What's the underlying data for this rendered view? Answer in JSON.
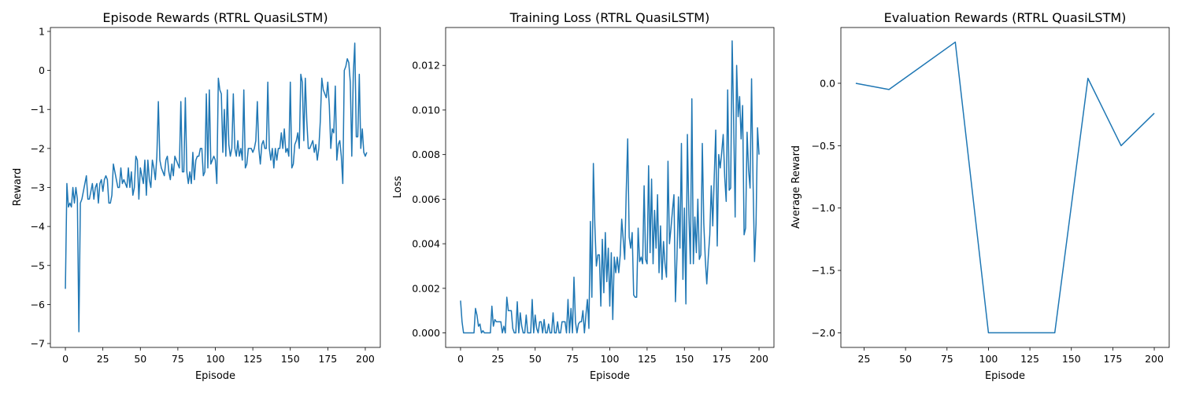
{
  "colors": {
    "line": "#1f77b4",
    "axis": "#000000",
    "background": "#ffffff"
  },
  "chart_data": [
    {
      "type": "line",
      "title": "Episode Rewards (RTRL QuasiLSTM)",
      "xlabel": "Episode",
      "ylabel": "Reward",
      "xlim": [
        -10,
        210
      ],
      "ylim": [
        -7.1,
        1.1
      ],
      "xticks": [
        0,
        25,
        50,
        75,
        100,
        125,
        150,
        175,
        200
      ],
      "yticks": [
        -7,
        -6,
        -5,
        -4,
        -3,
        -2,
        -1,
        0,
        1
      ],
      "ytick_labels": [
        "−7",
        "−6",
        "−5",
        "−4",
        "−3",
        "−2",
        "−1",
        "0",
        "1"
      ],
      "grid": false,
      "series": [
        {
          "x_start": 0,
          "x_step": 1,
          "values": [
            -5.6,
            -2.9,
            -3.5,
            -3.4,
            -3.5,
            -3.0,
            -3.4,
            -3.0,
            -3.3,
            -6.7,
            -3.4,
            -3.3,
            -3.1,
            -2.9,
            -2.7,
            -3.3,
            -3.3,
            -3.1,
            -2.9,
            -3.3,
            -3.0,
            -2.9,
            -3.4,
            -2.9,
            -2.8,
            -3.1,
            -2.8,
            -2.7,
            -2.8,
            -3.4,
            -3.4,
            -3.2,
            -2.4,
            -2.6,
            -2.8,
            -3.0,
            -3.0,
            -2.5,
            -2.9,
            -2.8,
            -2.9,
            -3.0,
            -2.5,
            -3.0,
            -2.6,
            -3.2,
            -3.0,
            -2.2,
            -2.3,
            -3.3,
            -2.5,
            -2.7,
            -2.9,
            -2.3,
            -3.2,
            -2.3,
            -2.8,
            -3.0,
            -2.3,
            -2.5,
            -2.8,
            -2.2,
            -0.8,
            -2.3,
            -2.5,
            -2.6,
            -2.7,
            -2.3,
            -2.2,
            -2.6,
            -2.8,
            -2.4,
            -2.7,
            -2.2,
            -2.3,
            -2.4,
            -2.5,
            -0.8,
            -2.6,
            -2.6,
            -0.7,
            -2.6,
            -2.9,
            -2.6,
            -2.9,
            -2.1,
            -2.8,
            -2.3,
            -2.2,
            -2.2,
            -2.0,
            -2.0,
            -2.7,
            -2.6,
            -0.6,
            -2.5,
            -0.5,
            -2.4,
            -2.3,
            -2.2,
            -2.3,
            -2.9,
            -0.2,
            -0.5,
            -0.6,
            -2.1,
            -1.0,
            -2.2,
            -0.5,
            -1.9,
            -2.2,
            -2.0,
            -0.6,
            -2.0,
            -2.2,
            -1.8,
            -2.2,
            -2.0,
            -2.3,
            -0.5,
            -2.5,
            -2.4,
            -2.0,
            -2.0,
            -2.0,
            -2.1,
            -2.0,
            -1.8,
            -0.8,
            -2.0,
            -2.4,
            -1.9,
            -1.8,
            -2.0,
            -2.0,
            -0.3,
            -2.0,
            -2.3,
            -2.0,
            -2.5,
            -2.0,
            -2.3,
            -2.0,
            -2.0,
            -1.6,
            -2.0,
            -1.5,
            -2.1,
            -2.0,
            -2.2,
            -0.3,
            -2.5,
            -2.4,
            -1.9,
            -1.8,
            -1.6,
            -2.0,
            -0.1,
            -0.3,
            -1.8,
            -0.2,
            -1.3,
            -2.0,
            -2.0,
            -1.9,
            -1.8,
            -2.1,
            -1.9,
            -2.3,
            -2.0,
            -1.3,
            -0.2,
            -0.5,
            -0.6,
            -0.7,
            -0.3,
            -0.9,
            -2.0,
            -1.5,
            -1.6,
            -0.4,
            -2.3,
            -1.9,
            -1.8,
            -2.2,
            -2.9,
            0.0,
            0.1,
            0.3,
            0.2,
            -0.3,
            -2.2,
            -0.1,
            0.7,
            -1.7,
            -1.7,
            -0.1,
            -2.0,
            -1.5,
            -2.1,
            -2.2,
            -2.1
          ]
        }
      ]
    },
    {
      "type": "line",
      "title": "Training Loss (RTRL QuasiLSTM)",
      "xlabel": "Episode",
      "ylabel": "Loss",
      "xlim": [
        -10,
        210
      ],
      "ylim": [
        -0.00065,
        0.0137
      ],
      "xticks": [
        0,
        25,
        50,
        75,
        100,
        125,
        150,
        175,
        200
      ],
      "yticks": [
        0.0,
        0.002,
        0.004,
        0.006,
        0.008,
        0.01,
        0.012
      ],
      "ytick_labels": [
        "0.000",
        "0.002",
        "0.004",
        "0.006",
        "0.008",
        "0.010",
        "0.012"
      ],
      "grid": false,
      "series": [
        {
          "x_start": 0,
          "x_step": 1,
          "values": [
            0.00145,
            0.0005,
            0.0,
            0.0,
            0.0,
            0.0,
            0.0,
            0.0,
            0.0,
            0.0,
            0.0011,
            0.0008,
            0.0003,
            0.0004,
            0.0,
            0.0001,
            0.0,
            0.0,
            0.0,
            0.0,
            0.0,
            0.0012,
            0.0003,
            0.0006,
            0.0005,
            0.0005,
            0.0005,
            0.0005,
            0.0,
            0.0003,
            0.0,
            0.0016,
            0.001,
            0.001,
            0.001,
            0.0002,
            0.0,
            0.0,
            0.0014,
            0.0,
            0.0009,
            0.0003,
            0.0,
            0.0,
            0.0008,
            0.0,
            0.0,
            0.0,
            0.0015,
            0.0,
            0.0008,
            0.0002,
            0.0,
            0.0005,
            0.0005,
            0.0,
            0.0006,
            0.0,
            0.0,
            0.0004,
            0.0,
            0.0,
            0.0009,
            0.0,
            0.0,
            0.0005,
            0.0,
            0.0,
            0.0005,
            0.0005,
            0.0005,
            0.0,
            0.0015,
            0.0,
            0.0011,
            0.0,
            0.0025,
            0.0005,
            0.0,
            0.0004,
            0.0005,
            0.0005,
            0.001,
            0.0,
            0.0008,
            0.0015,
            0.0002,
            0.005,
            0.0016,
            0.0076,
            0.0048,
            0.003,
            0.0035,
            0.0035,
            0.0012,
            0.0042,
            0.0018,
            0.0045,
            0.0023,
            0.0038,
            0.0012,
            0.0036,
            0.0006,
            0.0034,
            0.0027,
            0.0034,
            0.0027,
            0.0035,
            0.0051,
            0.0042,
            0.0033,
            0.0063,
            0.0087,
            0.0043,
            0.0038,
            0.0045,
            0.0017,
            0.0016,
            0.0016,
            0.0047,
            0.0032,
            0.0034,
            0.0031,
            0.0066,
            0.0033,
            0.0031,
            0.0075,
            0.0036,
            0.0069,
            0.0031,
            0.0055,
            0.0038,
            0.0062,
            0.0027,
            0.0048,
            0.0024,
            0.0041,
            0.0031,
            0.0025,
            0.0077,
            0.004,
            0.0047,
            0.0055,
            0.0062,
            0.0014,
            0.0034,
            0.0061,
            0.0038,
            0.0085,
            0.0024,
            0.0056,
            0.0013,
            0.0089,
            0.0053,
            0.0031,
            0.0105,
            0.0031,
            0.0052,
            0.0036,
            0.006,
            0.0033,
            0.0035,
            0.0085,
            0.0049,
            0.0033,
            0.0022,
            0.0034,
            0.0044,
            0.0066,
            0.0048,
            0.007,
            0.0091,
            0.0039,
            0.008,
            0.0074,
            0.0081,
            0.0089,
            0.007,
            0.0059,
            0.0109,
            0.0064,
            0.0065,
            0.0131,
            0.0095,
            0.0052,
            0.012,
            0.0097,
            0.0106,
            0.0087,
            0.0102,
            0.0044,
            0.0047,
            0.009,
            0.0073,
            0.0065,
            0.0114,
            0.0068,
            0.0032,
            0.0049,
            0.0092,
            0.008
          ]
        }
      ]
    },
    {
      "type": "line",
      "title": "Evaluation Rewards (RTRL QuasiLSTM)",
      "xlabel": "Episode",
      "ylabel": "Average Reward",
      "xlim": [
        11,
        209
      ],
      "ylim": [
        -2.117,
        0.447
      ],
      "xticks": [
        25,
        50,
        75,
        100,
        125,
        150,
        175,
        200
      ],
      "yticks": [
        -2.0,
        -1.5,
        -1.0,
        -0.5,
        0.0
      ],
      "ytick_labels": [
        "−2.0",
        "−1.5",
        "−1.0",
        "−0.5",
        "0.0"
      ],
      "grid": false,
      "series": [
        {
          "x": [
            20,
            40,
            60,
            80,
            100,
            120,
            140,
            160,
            180,
            200
          ],
          "values": [
            0.0,
            -0.05,
            0.14,
            0.33,
            -2.0,
            -2.0,
            -2.0,
            0.04,
            -0.5,
            -0.24
          ]
        }
      ]
    }
  ]
}
